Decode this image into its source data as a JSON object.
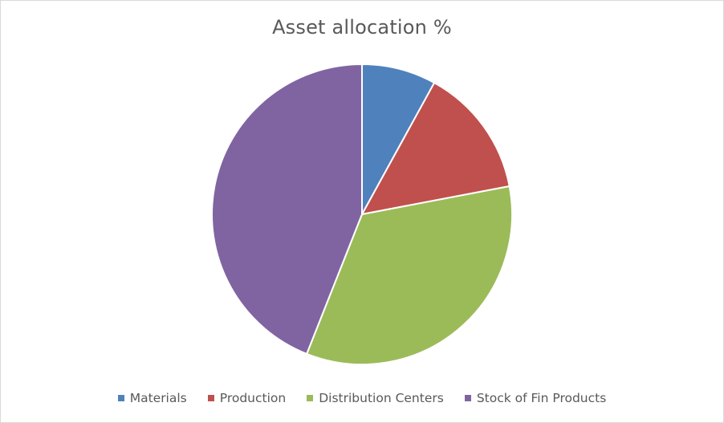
{
  "chart_data": {
    "type": "pie",
    "title": "Asset allocation %",
    "categories": [
      "Materials",
      "Production",
      "Distribution Centers",
      "Stock of Fin Products"
    ],
    "values": [
      8,
      14,
      34,
      44
    ],
    "colors": [
      "#4F81BD",
      "#C0504D",
      "#9BBB59",
      "#8064A2"
    ],
    "start_angle_deg": 0,
    "direction": "clockwise",
    "legend_position": "bottom"
  }
}
